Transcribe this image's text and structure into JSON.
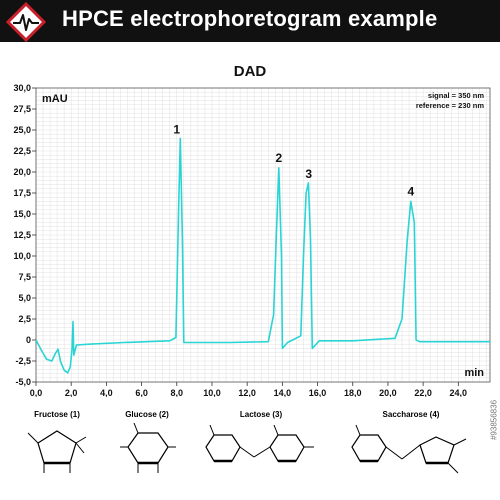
{
  "header": {
    "title": "HPCE electrophoretogram example",
    "logo_icon": "electrophoretogram-diamond-icon"
  },
  "colors": {
    "header_bg": "#111111",
    "trace": "#2ad4d4",
    "grid": "#d9d9d9",
    "logo_red": "#c8202a"
  },
  "chart_data": {
    "type": "line",
    "title": "DAD",
    "ylabel": "mAU",
    "xlabel": "min",
    "annotations": [
      "signal = 350 nm",
      "reference = 230 nm"
    ],
    "xlim": [
      0,
      25.8
    ],
    "ylim": [
      -5,
      30
    ],
    "grid": true,
    "x_ticks": [
      "0,0",
      "2,0",
      "4,0",
      "6,0",
      "8,0",
      "10,0",
      "12,0",
      "14,0",
      "16,0",
      "18,0",
      "20,0",
      "22,0",
      "24,0"
    ],
    "y_ticks": [
      "-5,0",
      "-2,5",
      "0",
      "2,5",
      "5,0",
      "7,5",
      "10,0",
      "12,5",
      "15,0",
      "17,5",
      "20,0",
      "22,5",
      "25,0",
      "27,5",
      "30,0"
    ],
    "series": [
      {
        "values": [
          {
            "x": 0,
            "y": 0
          },
          {
            "x": 0.3,
            "y": -1.2
          },
          {
            "x": 0.6,
            "y": -2.3
          },
          {
            "x": 0.9,
            "y": -2.5
          },
          {
            "x": 1.1,
            "y": -1.6
          },
          {
            "x": 1.25,
            "y": -1.1
          },
          {
            "x": 1.4,
            "y": -2.6
          },
          {
            "x": 1.6,
            "y": -3.6
          },
          {
            "x": 1.8,
            "y": -3.9
          },
          {
            "x": 1.95,
            "y": -3.2
          },
          {
            "x": 2.05,
            "y": -1.0
          },
          {
            "x": 2.1,
            "y": 2.2
          },
          {
            "x": 2.15,
            "y": -1.8
          },
          {
            "x": 2.3,
            "y": -0.6
          },
          {
            "x": 3.0,
            "y": -0.5
          },
          {
            "x": 5.0,
            "y": -0.3
          },
          {
            "x": 7.6,
            "y": -0.1
          },
          {
            "x": 7.95,
            "y": 0.3
          },
          {
            "x": 8.1,
            "y": 15.0
          },
          {
            "x": 8.2,
            "y": 24.0
          },
          {
            "x": 8.32,
            "y": 12.0
          },
          {
            "x": 8.4,
            "y": -0.3
          },
          {
            "x": 11.0,
            "y": -0.3
          },
          {
            "x": 13.2,
            "y": -0.2
          },
          {
            "x": 13.5,
            "y": 3.0
          },
          {
            "x": 13.65,
            "y": 12.0
          },
          {
            "x": 13.8,
            "y": 20.5
          },
          {
            "x": 13.95,
            "y": 10.0
          },
          {
            "x": 14.0,
            "y": -1.0
          },
          {
            "x": 14.3,
            "y": -0.3
          },
          {
            "x": 15.05,
            "y": 0.5
          },
          {
            "x": 15.2,
            "y": 10.0
          },
          {
            "x": 15.35,
            "y": 17.5
          },
          {
            "x": 15.48,
            "y": 18.7
          },
          {
            "x": 15.6,
            "y": 12.0
          },
          {
            "x": 15.7,
            "y": -1.0
          },
          {
            "x": 16.1,
            "y": -0.1
          },
          {
            "x": 18.0,
            "y": -0.1
          },
          {
            "x": 20.4,
            "y": 0.2
          },
          {
            "x": 20.8,
            "y": 2.5
          },
          {
            "x": 21.1,
            "y": 12.0
          },
          {
            "x": 21.3,
            "y": 16.5
          },
          {
            "x": 21.5,
            "y": 14.0
          },
          {
            "x": 21.6,
            "y": 0.0
          },
          {
            "x": 21.8,
            "y": -0.2
          },
          {
            "x": 25.8,
            "y": -0.2
          }
        ]
      }
    ],
    "peak_labels": [
      {
        "label": "1",
        "x": 8.0,
        "y": 24.6
      },
      {
        "label": "2",
        "x": 13.8,
        "y": 21.2
      },
      {
        "label": "3",
        "x": 15.5,
        "y": 19.3
      },
      {
        "label": "4",
        "x": 21.3,
        "y": 17.2
      }
    ]
  },
  "structures": [
    {
      "label": "Fructose (1)"
    },
    {
      "label": "Glucose (2)"
    },
    {
      "label": "Lactose (3)"
    },
    {
      "label": "Saccharose (4)"
    }
  ],
  "stock_id": "#93856836"
}
